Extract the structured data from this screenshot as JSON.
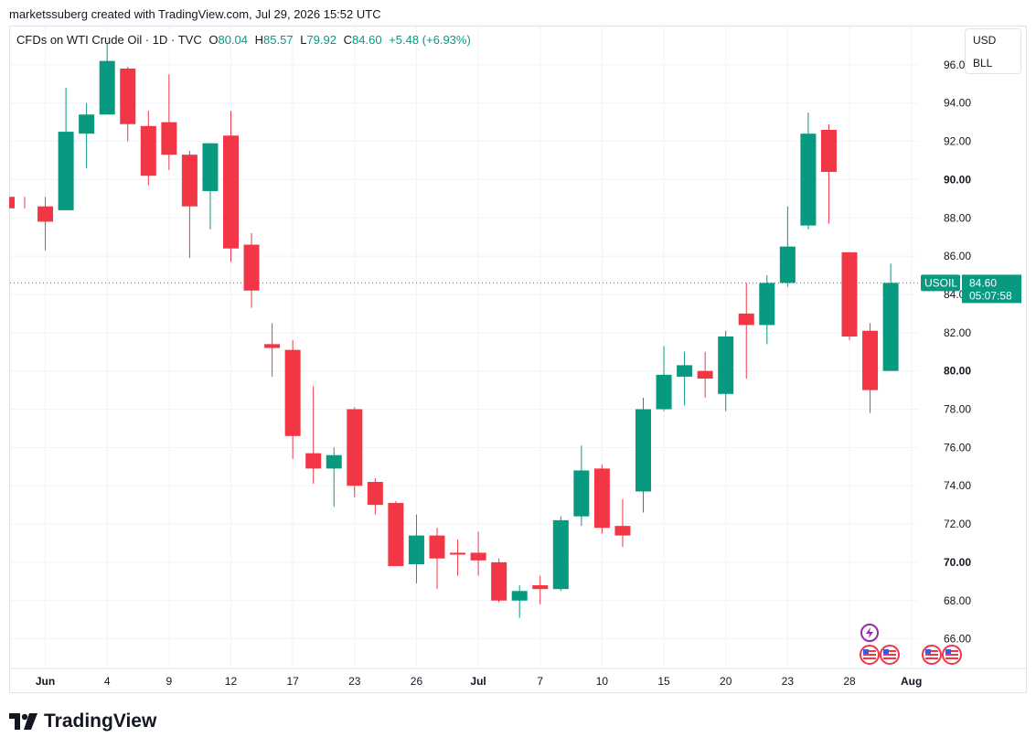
{
  "header": {
    "credit": "marketssuberg created with TradingView.com, Jul 29, 2026 15:52 UTC"
  },
  "legend": {
    "symbol": "CFDs on WTI Crude Oil · 1D · TVC",
    "o_label": "O",
    "o_value": "80.04",
    "h_label": "H",
    "h_value": "85.57",
    "l_label": "L",
    "l_value": "79.92",
    "c_label": "C",
    "c_value": "84.60",
    "change": "+5.48 (+6.93%)"
  },
  "unit_box": {
    "currency": "USD",
    "unit": "BLL"
  },
  "price_tag": {
    "symbol": "USOIL",
    "price": "84.60",
    "countdown": "05:07:58"
  },
  "brand": {
    "name": "TradingView"
  },
  "colors": {
    "up": "#089981",
    "down": "#f23645",
    "grid": "#f0f3fa",
    "text": "#131722",
    "accent": "#9c27b0"
  },
  "icons": {
    "event_icon": "lightning-icon",
    "flag_icon": "us-flag-icon"
  },
  "chart_data": {
    "type": "candlestick",
    "y_range": [
      64.5,
      98.0
    ],
    "y_ticks": [
      66,
      68,
      70,
      72,
      74,
      76,
      78,
      80,
      82,
      84,
      86,
      88,
      90,
      92,
      94,
      96
    ],
    "y_tick_labels": [
      "66.00",
      "68.00",
      "70.00",
      "72.00",
      "74.00",
      "76.00",
      "78.00",
      "80.00",
      "82.00",
      "84.00",
      "86.00",
      "88.00",
      "90.00",
      "92.00",
      "94.00",
      "96.00"
    ],
    "y_tick_bold": [
      "70.00",
      "80.00",
      "90.00"
    ],
    "x_ticks": [
      {
        "bar": 1,
        "label": "Jun",
        "bold": true
      },
      {
        "bar": 4,
        "label": "4",
        "bold": false
      },
      {
        "bar": 7,
        "label": "9",
        "bold": false
      },
      {
        "bar": 10,
        "label": "12",
        "bold": false
      },
      {
        "bar": 13,
        "label": "17",
        "bold": false
      },
      {
        "bar": 16,
        "label": "23",
        "bold": false
      },
      {
        "bar": 19,
        "label": "26",
        "bold": false
      },
      {
        "bar": 22,
        "label": "Jul",
        "bold": true
      },
      {
        "bar": 25,
        "label": "7",
        "bold": false
      },
      {
        "bar": 28,
        "label": "10",
        "bold": false
      },
      {
        "bar": 31,
        "label": "15",
        "bold": false
      },
      {
        "bar": 34,
        "label": "20",
        "bold": false
      },
      {
        "bar": 37,
        "label": "23",
        "bold": false
      },
      {
        "bar": 40,
        "label": "28",
        "bold": false
      },
      {
        "bar": 43,
        "label": "Aug",
        "bold": true
      }
    ],
    "last_price": 84.6,
    "candles": [
      {
        "o": 89.1,
        "h": 89.1,
        "l": 88.5,
        "c": 88.5
      },
      {
        "o": 88.6,
        "h": 89.1,
        "l": 86.3,
        "c": 87.8
      },
      {
        "o": 88.4,
        "h": 94.8,
        "l": 88.4,
        "c": 92.5
      },
      {
        "o": 92.4,
        "h": 94.0,
        "l": 90.6,
        "c": 93.4
      },
      {
        "o": 93.4,
        "h": 97.1,
        "l": 93.4,
        "c": 96.2
      },
      {
        "o": 95.8,
        "h": 95.9,
        "l": 92.0,
        "c": 92.9
      },
      {
        "o": 92.8,
        "h": 93.6,
        "l": 89.7,
        "c": 90.2
      },
      {
        "o": 93.0,
        "h": 95.5,
        "l": 90.5,
        "c": 91.3
      },
      {
        "o": 91.3,
        "h": 91.5,
        "l": 85.9,
        "c": 88.6
      },
      {
        "o": 89.4,
        "h": 91.9,
        "l": 87.4,
        "c": 91.9
      },
      {
        "o": 92.3,
        "h": 93.6,
        "l": 85.7,
        "c": 86.4
      },
      {
        "o": 86.6,
        "h": 87.2,
        "l": 83.3,
        "c": 84.2
      },
      {
        "o": 81.4,
        "h": 82.5,
        "l": 79.7,
        "c": 81.2
      },
      {
        "o": 81.1,
        "h": 81.6,
        "l": 75.4,
        "c": 76.6
      },
      {
        "o": 75.7,
        "h": 79.2,
        "l": 74.1,
        "c": 74.9
      },
      {
        "o": 74.9,
        "h": 76.0,
        "l": 72.9,
        "c": 75.6
      },
      {
        "o": 78.0,
        "h": 78.1,
        "l": 73.4,
        "c": 74.0
      },
      {
        "o": 74.2,
        "h": 74.4,
        "l": 72.5,
        "c": 73.0
      },
      {
        "o": 73.1,
        "h": 73.2,
        "l": 69.8,
        "c": 69.8
      },
      {
        "o": 69.9,
        "h": 72.5,
        "l": 68.9,
        "c": 71.4
      },
      {
        "o": 71.4,
        "h": 71.8,
        "l": 68.6,
        "c": 70.2
      },
      {
        "o": 70.5,
        "h": 71.2,
        "l": 69.3,
        "c": 70.4
      },
      {
        "o": 70.5,
        "h": 71.6,
        "l": 69.3,
        "c": 70.1
      },
      {
        "o": 70.0,
        "h": 70.2,
        "l": 67.9,
        "c": 68.0
      },
      {
        "o": 68.0,
        "h": 68.8,
        "l": 67.1,
        "c": 68.5
      },
      {
        "o": 68.8,
        "h": 69.3,
        "l": 67.8,
        "c": 68.6
      },
      {
        "o": 68.6,
        "h": 72.4,
        "l": 68.5,
        "c": 72.2
      },
      {
        "o": 72.4,
        "h": 76.1,
        "l": 71.9,
        "c": 74.8
      },
      {
        "o": 74.9,
        "h": 75.1,
        "l": 71.5,
        "c": 71.8
      },
      {
        "o": 71.9,
        "h": 73.3,
        "l": 70.8,
        "c": 71.4
      },
      {
        "o": 73.7,
        "h": 78.6,
        "l": 72.6,
        "c": 78.0
      },
      {
        "o": 78.0,
        "h": 81.3,
        "l": 77.9,
        "c": 79.8
      },
      {
        "o": 79.7,
        "h": 81.0,
        "l": 78.2,
        "c": 80.3
      },
      {
        "o": 80.0,
        "h": 81.0,
        "l": 78.6,
        "c": 79.6
      },
      {
        "o": 78.8,
        "h": 82.1,
        "l": 77.9,
        "c": 81.8
      },
      {
        "o": 83.0,
        "h": 84.6,
        "l": 79.6,
        "c": 82.4
      },
      {
        "o": 82.4,
        "h": 85.0,
        "l": 81.4,
        "c": 84.6
      },
      {
        "o": 84.6,
        "h": 88.6,
        "l": 84.4,
        "c": 86.5
      },
      {
        "o": 87.6,
        "h": 93.5,
        "l": 87.4,
        "c": 92.4
      },
      {
        "o": 92.6,
        "h": 92.9,
        "l": 87.7,
        "c": 90.4
      },
      {
        "o": 86.2,
        "h": 86.2,
        "l": 81.6,
        "c": 81.8
      },
      {
        "o": 82.1,
        "h": 82.5,
        "l": 77.8,
        "c": 79.0
      },
      {
        "o": 80.0,
        "h": 85.6,
        "l": 80.0,
        "c": 84.6
      }
    ]
  }
}
